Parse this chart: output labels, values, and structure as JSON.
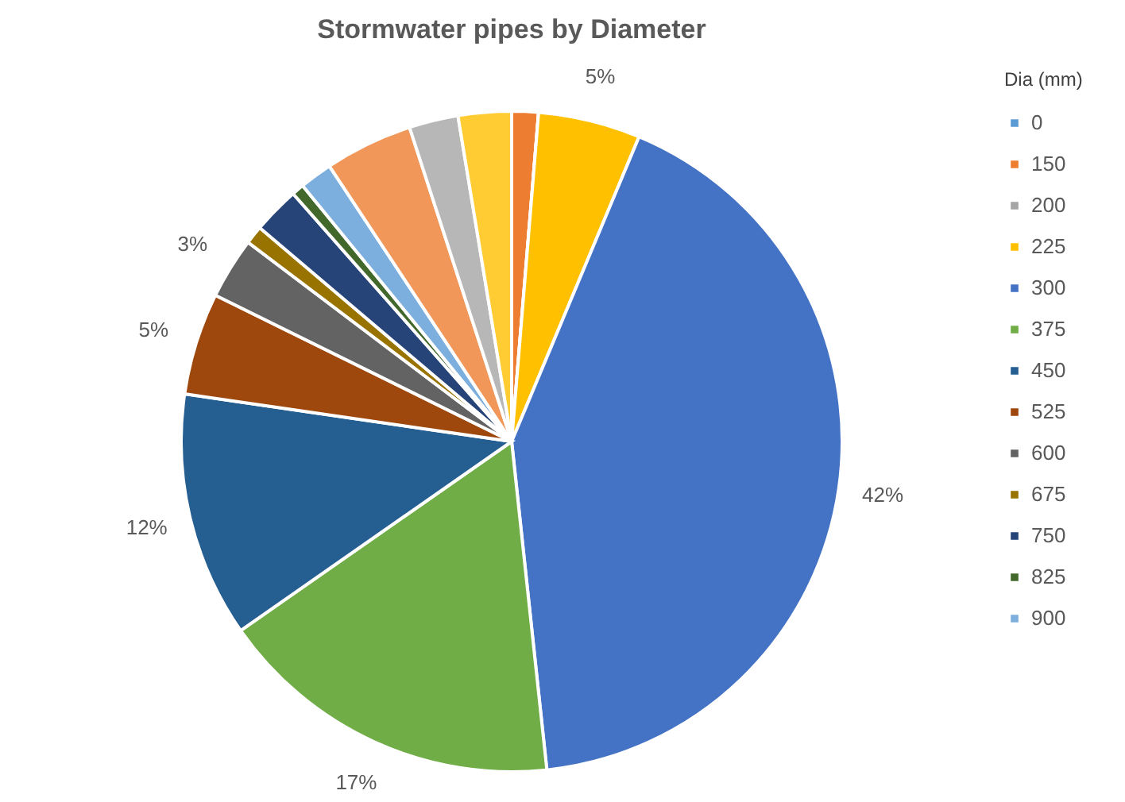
{
  "chart_data": {
    "type": "pie",
    "title": "Stormwater pipes by Diameter",
    "legend_title": "Dia (mm)",
    "legend": "right",
    "categories": [
      "0",
      "150",
      "200",
      "225",
      "300",
      "375",
      "450",
      "525",
      "600",
      "675",
      "750",
      "825",
      "900",
      null,
      null,
      null
    ],
    "values": [
      0,
      1.3,
      0,
      5,
      42,
      17,
      12,
      5,
      3,
      0.9,
      2.3,
      0.6,
      1.6,
      4.3,
      2.4,
      2.6
    ],
    "colors": [
      "#5b9bd5",
      "#ed7d31",
      "#a5a5a5",
      "#ffc000",
      "#4472c4",
      "#70ad47",
      "#255e91",
      "#9e480e",
      "#636363",
      "#997300",
      "#264478",
      "#43682b",
      "#7cafdd",
      "#f1975a",
      "#b7b7b7",
      "#ffcd33"
    ],
    "value_labels": [
      null,
      null,
      null,
      "5%",
      "42%",
      "17%",
      "12%",
      "5%",
      "3%",
      null,
      null,
      null,
      null,
      null,
      null,
      null
    ]
  }
}
